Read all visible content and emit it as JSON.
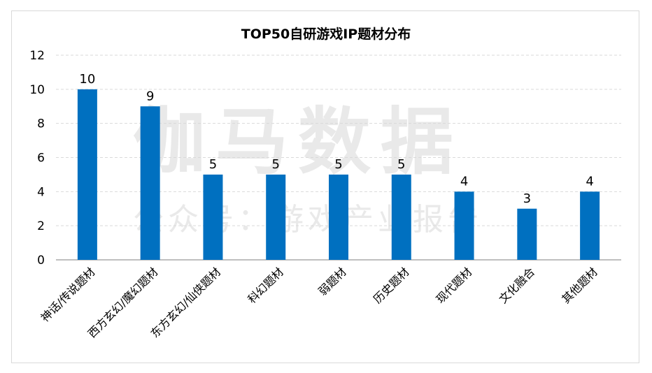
{
  "watermark": {
    "line1": "伽马数据",
    "line2": "公众号：游戏产业报告"
  },
  "chart_data": {
    "type": "bar",
    "title": "TOP50自研游戏IP题材分布",
    "xlabel": "",
    "ylabel": "",
    "ylim": [
      0,
      12
    ],
    "yticks": [
      0,
      2,
      4,
      6,
      8,
      10,
      12
    ],
    "grid": true,
    "categories": [
      "神话/传说题材",
      "西方玄幻/魔幻题材",
      "东方玄幻/仙侠题材",
      "科幻题材",
      "弱题材",
      "历史题材",
      "现代题材",
      "文化融合",
      "其他题材"
    ],
    "values": [
      10,
      9,
      5,
      5,
      5,
      5,
      4,
      3,
      4
    ],
    "bar_color": "#0070c0",
    "grid_color": "#d9d9d9",
    "axis_color": "#7f7f7f"
  }
}
